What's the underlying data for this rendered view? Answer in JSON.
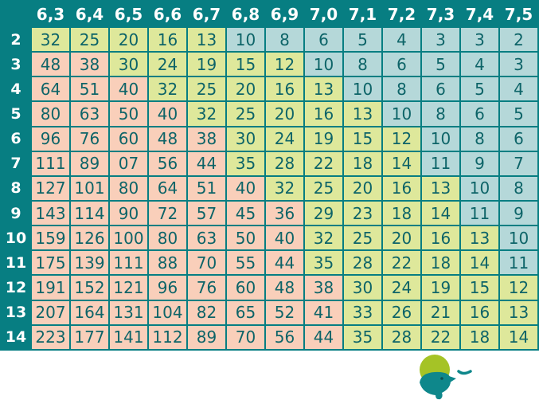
{
  "colors": {
    "background": "#077e82",
    "salmon": "#f9cfba",
    "green": "#dee89b",
    "blue": "#b5d8d9",
    "cell_text": "#0d6468",
    "header_text": "#ffffff",
    "page_bg": "#ffffff",
    "logo_lime": "#a5c326",
    "logo_teal": "#0e878b"
  },
  "chart_data": {
    "type": "table",
    "title": "",
    "col_headers": [
      "6,3",
      "6,4",
      "6,5",
      "6,6",
      "6,7",
      "6,8",
      "6,9",
      "7,0",
      "7,1",
      "7,2",
      "7,3",
      "7,4",
      "7,5"
    ],
    "row_headers": [
      "2",
      "3",
      "4",
      "5",
      "6",
      "7",
      "8",
      "9",
      "10",
      "11",
      "12",
      "13",
      "14"
    ],
    "rows": [
      [
        "32",
        "25",
        "20",
        "16",
        "13",
        "10",
        "8",
        "6",
        "5",
        "4",
        "3",
        "3",
        "2"
      ],
      [
        "48",
        "38",
        "30",
        "24",
        "19",
        "15",
        "12",
        "10",
        "8",
        "6",
        "5",
        "4",
        "3"
      ],
      [
        "64",
        "51",
        "40",
        "32",
        "25",
        "20",
        "16",
        "13",
        "10",
        "8",
        "6",
        "5",
        "4"
      ],
      [
        "80",
        "63",
        "50",
        "40",
        "32",
        "25",
        "20",
        "16",
        "13",
        "10",
        "8",
        "6",
        "5"
      ],
      [
        "96",
        "76",
        "60",
        "48",
        "38",
        "30",
        "24",
        "19",
        "15",
        "12",
        "10",
        "8",
        "6"
      ],
      [
        "111",
        "89",
        "07",
        "56",
        "44",
        "35",
        "28",
        "22",
        "18",
        "14",
        "11",
        "9",
        "7"
      ],
      [
        "127",
        "101",
        "80",
        "64",
        "51",
        "40",
        "32",
        "25",
        "20",
        "16",
        "13",
        "10",
        "8"
      ],
      [
        "143",
        "114",
        "90",
        "72",
        "57",
        "45",
        "36",
        "29",
        "23",
        "18",
        "14",
        "11",
        "9"
      ],
      [
        "159",
        "126",
        "100",
        "80",
        "63",
        "50",
        "40",
        "32",
        "25",
        "20",
        "16",
        "13",
        "10"
      ],
      [
        "175",
        "139",
        "111",
        "88",
        "70",
        "55",
        "44",
        "35",
        "28",
        "22",
        "18",
        "14",
        "11"
      ],
      [
        "191",
        "152",
        "121",
        "96",
        "76",
        "60",
        "48",
        "38",
        "30",
        "24",
        "19",
        "15",
        "12"
      ],
      [
        "207",
        "164",
        "131",
        "104",
        "82",
        "65",
        "52",
        "41",
        "33",
        "26",
        "21",
        "16",
        "13"
      ],
      [
        "223",
        "177",
        "141",
        "112",
        "89",
        "70",
        "56",
        "44",
        "35",
        "28",
        "22",
        "18",
        "14"
      ]
    ],
    "cell_colors": [
      [
        "g",
        "g",
        "g",
        "g",
        "g",
        "b",
        "b",
        "b",
        "b",
        "b",
        "b",
        "b",
        "b"
      ],
      [
        "s",
        "s",
        "g",
        "g",
        "g",
        "g",
        "g",
        "b",
        "b",
        "b",
        "b",
        "b",
        "b"
      ],
      [
        "s",
        "s",
        "s",
        "g",
        "g",
        "g",
        "g",
        "g",
        "b",
        "b",
        "b",
        "b",
        "b"
      ],
      [
        "s",
        "s",
        "s",
        "s",
        "g",
        "g",
        "g",
        "g",
        "g",
        "b",
        "b",
        "b",
        "b"
      ],
      [
        "s",
        "s",
        "s",
        "s",
        "s",
        "g",
        "g",
        "g",
        "g",
        "g",
        "b",
        "b",
        "b"
      ],
      [
        "s",
        "s",
        "s",
        "s",
        "s",
        "g",
        "g",
        "g",
        "g",
        "g",
        "b",
        "b",
        "b"
      ],
      [
        "s",
        "s",
        "s",
        "s",
        "s",
        "s",
        "g",
        "g",
        "g",
        "g",
        "g",
        "b",
        "b"
      ],
      [
        "s",
        "s",
        "s",
        "s",
        "s",
        "s",
        "s",
        "g",
        "g",
        "g",
        "g",
        "b",
        "b"
      ],
      [
        "s",
        "s",
        "s",
        "s",
        "s",
        "s",
        "s",
        "g",
        "g",
        "g",
        "g",
        "g",
        "b"
      ],
      [
        "s",
        "s",
        "s",
        "s",
        "s",
        "s",
        "s",
        "g",
        "g",
        "g",
        "g",
        "g",
        "b"
      ],
      [
        "s",
        "s",
        "s",
        "s",
        "s",
        "s",
        "s",
        "s",
        "g",
        "g",
        "g",
        "g",
        "g"
      ],
      [
        "s",
        "s",
        "s",
        "s",
        "s",
        "s",
        "s",
        "s",
        "g",
        "g",
        "g",
        "g",
        "g"
      ],
      [
        "s",
        "s",
        "s",
        "s",
        "s",
        "s",
        "s",
        "s",
        "g",
        "g",
        "g",
        "g",
        "g"
      ]
    ]
  },
  "logo": {
    "name": "bird-logo"
  }
}
